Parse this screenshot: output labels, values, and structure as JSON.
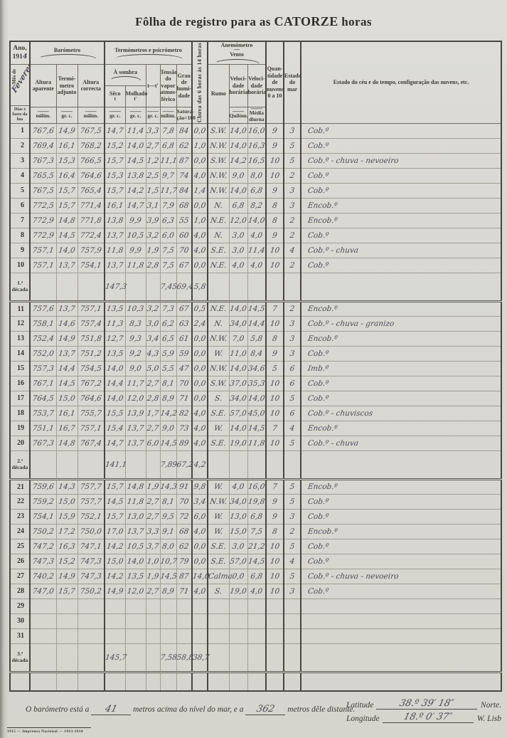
{
  "title": {
    "t1": "Fôlha de registro para as ",
    "t2": "CATORZE",
    "t3": " horas"
  },
  "header": {
    "ano_label": "Ano,",
    "ano_prefix": "191",
    "ano_hw": "4",
    "mes_label": "Mês de",
    "mes_hw": "Fevereiro",
    "dias_label": "Dias e fases da lua",
    "barometro": "Barómetro",
    "termometros": "Termómetros e psicrómetro",
    "anemometro": "Anemómetro",
    "vento": "Vento",
    "chuva": "Chuva das 6 horas ás 14 horas",
    "altura_aparente": "Altura aparente",
    "term_adjunto": "Termó-metro adjunto",
    "altura_correcta": "Altura correcta",
    "a_sombra": "À sombra",
    "seco": "Sêco",
    "seco_sub": "t",
    "molhado": "Molhado",
    "molhado_sub": "t′",
    "t_t": "t—t′",
    "tensao": "Tensão do vapor atmos-férico",
    "grau": "Grau de humi-dade",
    "rumo": "Rumo",
    "vel_horaria": "Veloci-dade horária",
    "quantidade": "Quan-tidade de nuvens 0 a 10",
    "estado_mar": "Estado do mar",
    "estado_ceu": "Estado do céu e do tempo, configuração das nuvens, etc.",
    "units": {
      "dash": "——",
      "milim": "milím.",
      "gr_c": "gr. c.",
      "sat1": "Satura-",
      "sat2": "ção=100",
      "quilom": "Quilóm.",
      "media1": "Média",
      "media2": "diurna"
    }
  },
  "table": {
    "rows": [
      {
        "d": "1",
        "v": [
          "767,6",
          "14,9",
          "767,5",
          "14,7",
          "11,4",
          "3,3",
          "7,8",
          "84",
          "0,0",
          "S.W.",
          "14,0",
          "16,0",
          "9",
          "3",
          "Cob.º"
        ]
      },
      {
        "d": "2",
        "v": [
          "769,4",
          "16,1",
          "768,2",
          "15,2",
          "14,0",
          "2,7",
          "6,8",
          "62",
          "1,0",
          "N.W.",
          "14,0",
          "16,3",
          "9",
          "5",
          "Cob.º"
        ]
      },
      {
        "d": "3",
        "v": [
          "767,3",
          "15,3",
          "766,5",
          "15,7",
          "14,5",
          "1,2",
          "11,1",
          "87",
          "0,0",
          "S.W.",
          "14,2",
          "16,5",
          "10",
          "5",
          "Cob.º - chuva - nevoeiro"
        ]
      },
      {
        "d": "4",
        "v": [
          "765,5",
          "16,4",
          "764,6",
          "15,3",
          "13,8",
          "2,5",
          "9,7",
          "74",
          "4,0",
          "N.W.",
          "9,0",
          "8,0",
          "10",
          "2",
          "Cob.º"
        ]
      },
      {
        "d": "5",
        "v": [
          "767,5",
          "15,7",
          "765,4",
          "15,7",
          "14,2",
          "1,5",
          "11,7",
          "84",
          "1,4",
          "N.W.",
          "14,0",
          "6,8",
          "9",
          "3",
          "Cob.º"
        ]
      },
      {
        "d": "6",
        "v": [
          "772,5",
          "15,7",
          "771,4",
          "16,1",
          "14,7",
          "3,1",
          "7,9",
          "68",
          "0,0",
          "N.",
          "6,8",
          "8,2",
          "8",
          "3",
          "Encob.º"
        ]
      },
      {
        "d": "7",
        "v": [
          "772,9",
          "14,8",
          "771,8",
          "13,8",
          "9,9",
          "3,9",
          "6,3",
          "55",
          "1,0",
          "N.E.",
          "12,0",
          "14,0",
          "8",
          "2",
          "Encob.º"
        ]
      },
      {
        "d": "8",
        "v": [
          "772,9",
          "14,5",
          "772,4",
          "13,7",
          "10,5",
          "3,2",
          "6,0",
          "60",
          "4,0",
          "N.",
          "3,0",
          "4,0",
          "9",
          "2",
          "Cob.º"
        ]
      },
      {
        "d": "9",
        "v": [
          "757,1",
          "14,0",
          "757,9",
          "11,8",
          "9,9",
          "1,9",
          "7,5",
          "70",
          "4,0",
          "S.E.",
          "3,0",
          "11,4",
          "10",
          "4",
          "Cob.º - chuva"
        ]
      },
      {
        "d": "10",
        "v": [
          "757,1",
          "13,7",
          "754,1",
          "13,7",
          "11,8",
          "2,8",
          "7,5",
          "67",
          "0,0",
          "N.E.",
          "4,0",
          "4,0",
          "10",
          "2",
          "Cob.º"
        ]
      },
      {
        "d": "11",
        "v": [
          "757,6",
          "13,7",
          "757,1",
          "13,5",
          "10,3",
          "3,2",
          "7,3",
          "67",
          "0,5",
          "N.E.",
          "14,0",
          "14,5",
          "7",
          "2",
          "Encob.º"
        ]
      },
      {
        "d": "12",
        "v": [
          "758,1",
          "14,6",
          "757,4",
          "11,3",
          "8,3",
          "3,0",
          "6,2",
          "63",
          "2,4",
          "N.",
          "34,0",
          "14,4",
          "10",
          "3",
          "Cob.º - chuva - granizo"
        ]
      },
      {
        "d": "13",
        "v": [
          "752,4",
          "14,9",
          "751,8",
          "12,7",
          "9,3",
          "3,4",
          "6,5",
          "61",
          "0,0",
          "N.W.",
          "7,0",
          "5,8",
          "8",
          "3",
          "Encob.º"
        ]
      },
      {
        "d": "14",
        "v": [
          "752,0",
          "13,7",
          "751,2",
          "13,5",
          "9,2",
          "4,3",
          "5,9",
          "59",
          "0,0",
          "W.",
          "11,0",
          "8,4",
          "9",
          "3",
          "Cob.º"
        ]
      },
      {
        "d": "15",
        "v": [
          "757,3",
          "14,4",
          "754,5",
          "14,0",
          "9,0",
          "5,0",
          "5,5",
          "47",
          "0,0",
          "N.W.",
          "14,0",
          "34,6",
          "5",
          "6",
          "Imb.º"
        ]
      },
      {
        "d": "16",
        "v": [
          "767,1",
          "14,5",
          "767,2",
          "14,4",
          "11,7",
          "2,7",
          "8,1",
          "70",
          "0,0",
          "S.W.",
          "37,0",
          "35,3",
          "10",
          "6",
          "Cob.º"
        ]
      },
      {
        "d": "17",
        "v": [
          "764,5",
          "15,0",
          "764,6",
          "14,0",
          "12,0",
          "2,8",
          "8,9",
          "71",
          "0,0",
          "S.",
          "34,0",
          "14,0",
          "10",
          "5",
          "Cob.º"
        ]
      },
      {
        "d": "18",
        "v": [
          "753,7",
          "16,1",
          "755,7",
          "15,5",
          "13,9",
          "1,7",
          "14,2",
          "82",
          "4,0",
          "S.E.",
          "57,0",
          "45,0",
          "10",
          "6",
          "Cob.º - chuviscos"
        ]
      },
      {
        "d": "19",
        "v": [
          "751,1",
          "16,7",
          "757,1",
          "15,4",
          "13,7",
          "2,7",
          "9,0",
          "73",
          "4,0",
          "W.",
          "14,0",
          "14,5",
          "7",
          "4",
          "Encob.º"
        ]
      },
      {
        "d": "20",
        "v": [
          "767,3",
          "14,8",
          "767,4",
          "14,7",
          "13,7",
          "6,0",
          "14,5",
          "89",
          "4,0",
          "S.E.",
          "19,0",
          "11,8",
          "10",
          "5",
          "Cob.º - chuva"
        ]
      },
      {
        "d": "21",
        "v": [
          "759,6",
          "14,3",
          "757,7",
          "15,7",
          "14,8",
          "1,9",
          "14,3",
          "91",
          "9,8",
          "W.",
          "4,0",
          "16,0",
          "7",
          "5",
          "Encob.º"
        ]
      },
      {
        "d": "22",
        "v": [
          "759,2",
          "15,0",
          "757,7",
          "14,5",
          "11,8",
          "2,7",
          "8,1",
          "70",
          "3,4",
          "N.W.",
          "34,0",
          "19,8",
          "9",
          "5",
          "Cob.º"
        ]
      },
      {
        "d": "23",
        "v": [
          "754,1",
          "15,9",
          "752,1",
          "15,7",
          "13,0",
          "2,7",
          "9,5",
          "72",
          "6,0",
          "W.",
          "13,0",
          "6,8",
          "9",
          "3",
          "Cob.º"
        ]
      },
      {
        "d": "24",
        "v": [
          "750,2",
          "17,2",
          "750,0",
          "17,0",
          "13,7",
          "3,3",
          "9,1",
          "68",
          "4,0",
          "W.",
          "15,0",
          "7,5",
          "8",
          "2",
          "Encob.º"
        ]
      },
      {
        "d": "25",
        "v": [
          "747,2",
          "16,3",
          "747,1",
          "14,2",
          "10,5",
          "3,7",
          "8,0",
          "62",
          "0,0",
          "S.E.",
          "3,0",
          "21,2",
          "10",
          "5",
          "Cob.º"
        ]
      },
      {
        "d": "26",
        "v": [
          "747,3",
          "15,2",
          "747,3",
          "15,0",
          "14,0",
          "1,0",
          "10,7",
          "79",
          "0,0",
          "S.E.",
          "57,0",
          "14,5",
          "10",
          "4",
          "Cob.º"
        ]
      },
      {
        "d": "27",
        "v": [
          "740,2",
          "14,9",
          "747,3",
          "14,2",
          "13,5",
          "1,9",
          "14,5",
          "87",
          "14,0",
          "Calma",
          "0,0",
          "6,8",
          "10",
          "5",
          "Cob.º - chuva - nevoeiro"
        ]
      },
      {
        "d": "28",
        "v": [
          "747,0",
          "15,7",
          "750,2",
          "14,9",
          "12,0",
          "2,7",
          "8,9",
          "71",
          "4,0",
          "S.",
          "19,0",
          "4,0",
          "10",
          "3",
          "Cob.º"
        ]
      },
      {
        "d": "29",
        "v": [
          "",
          "",
          "",
          "",
          "",
          "",
          "",
          "",
          "",
          "",
          "",
          "",
          "",
          "",
          ""
        ]
      },
      {
        "d": "30",
        "v": [
          "",
          "",
          "",
          "",
          "",
          "",
          "",
          "",
          "",
          "",
          "",
          "",
          "",
          "",
          ""
        ]
      },
      {
        "d": "31",
        "v": [
          "",
          "",
          "",
          "",
          "",
          "",
          "",
          "",
          "",
          "",
          "",
          "",
          "",
          "",
          ""
        ]
      }
    ],
    "decades": [
      {
        "label": "1.ª década",
        "seco": "147,3",
        "tensao": "7,45",
        "grau": "69,4",
        "chuva": "5,8"
      },
      {
        "label": "2.ª década",
        "seco": "141,1",
        "tensao": "7,89",
        "grau": "67,2",
        "chuva": "4,2"
      },
      {
        "label": "3.ª década",
        "seco": "145,7",
        "tensao": "7,58",
        "grau": "58,8",
        "chuva": "38,7"
      }
    ]
  },
  "footer": {
    "baro_1": "O barómetro está a",
    "baro_hw_1": "41",
    "baro_2": "metros acima do nível do mar, e a",
    "baro_hw_2": "362",
    "baro_3": "metros dêle distante.",
    "latitude_label": "Latitude",
    "latitude_hw": "38.º 39′ 18″",
    "latitude_suffix": "Norte.",
    "longitude_label": "Longitude",
    "longitude_hw": "18.º 0′ 37″",
    "longitude_suffix": "W. Lisb",
    "imprint": "1915 — Imprensa Nacional — 1913-1914"
  }
}
